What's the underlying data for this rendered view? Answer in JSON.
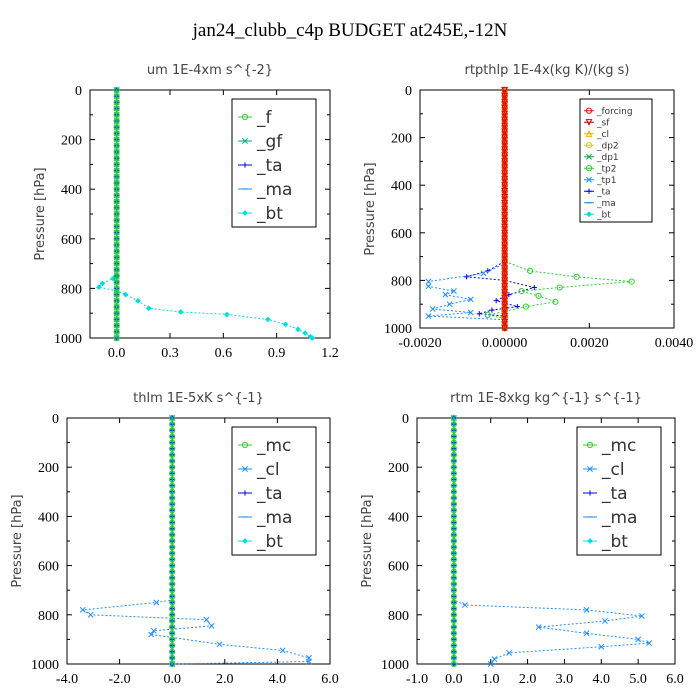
{
  "title": "jan24_clubb_c4p  BUDGET at245E,-12N",
  "colors": {
    "green": "#33cc33",
    "blue": "#0000ee",
    "lightblue": "#1f8fff",
    "red": "#ee1111",
    "cyan": "#00dddd"
  },
  "chart_data": [
    {
      "type": "line",
      "title": "um   1E-4xm s^{-2}",
      "ylabel": "Pressure [hPa]",
      "xlim": [
        -0.15,
        1.2
      ],
      "ylim": [
        1000,
        0
      ],
      "xticks": [
        "0.0",
        "0.3",
        "0.6",
        "0.9",
        "1.2"
      ],
      "xtick_values": [
        0,
        0.3,
        0.6,
        0.9,
        1.2
      ],
      "yticks": [
        "0",
        "200",
        "400",
        "600",
        "800",
        "1000"
      ],
      "legend_position": "top-right",
      "legend": [
        "_f",
        "_gf",
        "_ta",
        "_ma",
        "_bt"
      ],
      "series": [
        {
          "name": "_f",
          "color": "#33cc33",
          "marker": "o",
          "const_x": 0.0
        },
        {
          "name": "_gf",
          "color": "#00aa88",
          "marker": "x",
          "const_x": 0.0
        },
        {
          "name": "_ta",
          "color": "#0000ee",
          "marker": "+",
          "const_x": 0.0
        },
        {
          "name": "_ma",
          "color": "#1f8fff",
          "marker": "-",
          "const_x": 0.0
        },
        {
          "name": "_bt",
          "color": "#00dddd",
          "marker": "d",
          "points": [
            [
              0.0,
              0
            ],
            [
              0.0,
              750
            ],
            [
              -0.02,
              760
            ],
            [
              -0.08,
              780
            ],
            [
              -0.1,
              795
            ],
            [
              0.0,
              810
            ],
            [
              0.05,
              825
            ],
            [
              0.12,
              850
            ],
            [
              0.18,
              880
            ],
            [
              0.36,
              895
            ],
            [
              0.62,
              905
            ],
            [
              0.85,
              925
            ],
            [
              0.95,
              945
            ],
            [
              1.02,
              965
            ],
            [
              1.06,
              980
            ],
            [
              1.09,
              995
            ],
            [
              1.1,
              1000
            ]
          ]
        }
      ]
    },
    {
      "type": "line",
      "title": "rtpthlp   1E-4x(kg K)/(kg s)",
      "ylabel": "Pressure [hPa]",
      "xlim": [
        -0.002,
        0.004
      ],
      "ylim": [
        1000,
        0
      ],
      "xticks": [
        "-0.0020",
        "0.00000",
        "0.0020",
        "0.0040"
      ],
      "xtick_values": [
        -0.002,
        0,
        0.002,
        0.004
      ],
      "yticks": [
        "0",
        "200",
        "400",
        "600",
        "800",
        "1000"
      ],
      "legend_position": "top-right",
      "legend": [
        "_forcing",
        "_sf",
        "_cl",
        "_dp2",
        "_dp1",
        "_tp2",
        "_tp1",
        "_ta",
        "_ma",
        "_bt"
      ],
      "series": [
        {
          "name": "_forcing",
          "color": "#ee1111",
          "marker": "o",
          "const_x": 0.0
        },
        {
          "name": "_sf",
          "color": "#cc0000",
          "marker": "v",
          "const_x": 0.0
        },
        {
          "name": "_cl",
          "color": "#ffaa00",
          "marker": "^",
          "const_x": 0.0
        },
        {
          "name": "_dp2",
          "color": "#ddcc00",
          "marker": "o",
          "const_x": 0.0
        },
        {
          "name": "_dp1",
          "color": "#00aa44",
          "marker": "x",
          "const_x": 0.0
        },
        {
          "name": "_tp2",
          "color": "#33cc33",
          "marker": "o",
          "points": [
            [
              0.0,
              0
            ],
            [
              0.0,
              720
            ],
            [
              0.0006,
              760
            ],
            [
              0.0017,
              785
            ],
            [
              0.003,
              805
            ],
            [
              0.0013,
              830
            ],
            [
              0.0004,
              845
            ],
            [
              0.0008,
              865
            ],
            [
              0.0012,
              890
            ],
            [
              0.0005,
              910
            ],
            [
              0.0,
              930
            ],
            [
              -0.0004,
              945
            ],
            [
              0.0,
              960
            ],
            [
              0.0,
              1000
            ]
          ]
        },
        {
          "name": "_tp1",
          "color": "#1f8fff",
          "marker": "x",
          "points": [
            [
              0.0,
              0
            ],
            [
              0.0,
              730
            ],
            [
              -0.0005,
              770
            ],
            [
              -0.0018,
              805
            ],
            [
              -0.0018,
              825
            ],
            [
              -0.0012,
              845
            ],
            [
              -0.0014,
              860
            ],
            [
              -0.0008,
              880
            ],
            [
              -0.0013,
              900
            ],
            [
              -0.0017,
              920
            ],
            [
              -0.0008,
              935
            ],
            [
              -0.0018,
              950
            ],
            [
              0.0,
              965
            ],
            [
              0.0,
              1000
            ]
          ]
        },
        {
          "name": "_ta",
          "color": "#0000ee",
          "marker": "+",
          "points": [
            [
              0.0,
              0
            ],
            [
              0.0,
              720
            ],
            [
              -0.0004,
              760
            ],
            [
              -0.0009,
              785
            ],
            [
              0.0,
              800
            ],
            [
              0.0007,
              830
            ],
            [
              0.0001,
              860
            ],
            [
              -0.0002,
              885
            ],
            [
              0.0003,
              910
            ],
            [
              -0.0003,
              925
            ],
            [
              -0.0006,
              940
            ],
            [
              0.0,
              950
            ],
            [
              0.0,
              1000
            ]
          ]
        },
        {
          "name": "_ma",
          "color": "#1f8fff",
          "marker": "-",
          "const_x": 0.0
        },
        {
          "name": "_bt",
          "color": "#00dddd",
          "marker": "d",
          "const_x": 0.0
        }
      ]
    },
    {
      "type": "line",
      "title": "thlm   1E-5xK s^{-1}",
      "ylabel": "Pressure [hPa]",
      "xlim": [
        -4.0,
        6.0
      ],
      "ylim": [
        1000,
        0
      ],
      "xticks": [
        "-4.0",
        "-2.0",
        "0.0",
        "2.0",
        "4.0",
        "6.0"
      ],
      "xtick_values": [
        -4,
        -2,
        0,
        2,
        4,
        6
      ],
      "yticks": [
        "0",
        "200",
        "400",
        "600",
        "800",
        "1000"
      ],
      "legend_position": "top-right",
      "legend": [
        "_mc",
        "_cl",
        "_ta",
        "_ma",
        "_bt"
      ],
      "series": [
        {
          "name": "_mc",
          "color": "#33cc33",
          "marker": "o",
          "const_x": 0.0
        },
        {
          "name": "_cl",
          "color": "#1f8fff",
          "marker": "x",
          "points": [
            [
              0.0,
              0
            ],
            [
              0.0,
              740
            ],
            [
              -0.6,
              750
            ],
            [
              -3.4,
              780
            ],
            [
              -3.1,
              800
            ],
            [
              1.3,
              820
            ],
            [
              1.5,
              845
            ],
            [
              -0.7,
              865
            ],
            [
              -0.8,
              880
            ],
            [
              1.8,
              920
            ],
            [
              4.2,
              945
            ],
            [
              5.2,
              975
            ],
            [
              5.2,
              990
            ],
            [
              0.0,
              1000
            ]
          ]
        },
        {
          "name": "_ta",
          "color": "#0000ee",
          "marker": "+",
          "const_x": 0.0
        },
        {
          "name": "_ma",
          "color": "#1f8fff",
          "marker": "-",
          "const_x": 0.0
        },
        {
          "name": "_bt",
          "color": "#00dddd",
          "marker": "d",
          "const_x": 0.0
        }
      ]
    },
    {
      "type": "line",
      "title": "rtm   1E-8xkg kg^{-1} s^{-1}",
      "ylabel": "Pressure [hPa]",
      "xlim": [
        -1.0,
        6.0
      ],
      "ylim": [
        1000,
        0
      ],
      "xticks": [
        "-1.0",
        "0.0",
        "1.0",
        "2.0",
        "3.0",
        "4.0",
        "5.0",
        "6.0"
      ],
      "xtick_values": [
        -1,
        0,
        1,
        2,
        3,
        4,
        5,
        6
      ],
      "yticks": [
        "0",
        "200",
        "400",
        "600",
        "800",
        "1000"
      ],
      "legend_position": "top-right",
      "legend": [
        "_mc",
        "_cl",
        "_ta",
        "_ma",
        "_bt"
      ],
      "series": [
        {
          "name": "_mc",
          "color": "#33cc33",
          "marker": "o",
          "const_x": 0.0
        },
        {
          "name": "_cl",
          "color": "#1f8fff",
          "marker": "x",
          "points": [
            [
              0.0,
              0
            ],
            [
              0.0,
              740
            ],
            [
              0.3,
              760
            ],
            [
              3.6,
              780
            ],
            [
              5.1,
              805
            ],
            [
              4.1,
              825
            ],
            [
              2.3,
              850
            ],
            [
              3.6,
              875
            ],
            [
              5.0,
              900
            ],
            [
              5.3,
              915
            ],
            [
              4.0,
              930
            ],
            [
              1.5,
              955
            ],
            [
              1.1,
              980
            ],
            [
              1.0,
              1000
            ]
          ]
        },
        {
          "name": "_ta",
          "color": "#0000ee",
          "marker": "+",
          "const_x": 0.0
        },
        {
          "name": "_ma",
          "color": "#1f8fff",
          "marker": "-",
          "const_x": 0.0
        },
        {
          "name": "_bt",
          "color": "#00dddd",
          "marker": "d",
          "const_x": 0.0
        }
      ]
    }
  ]
}
